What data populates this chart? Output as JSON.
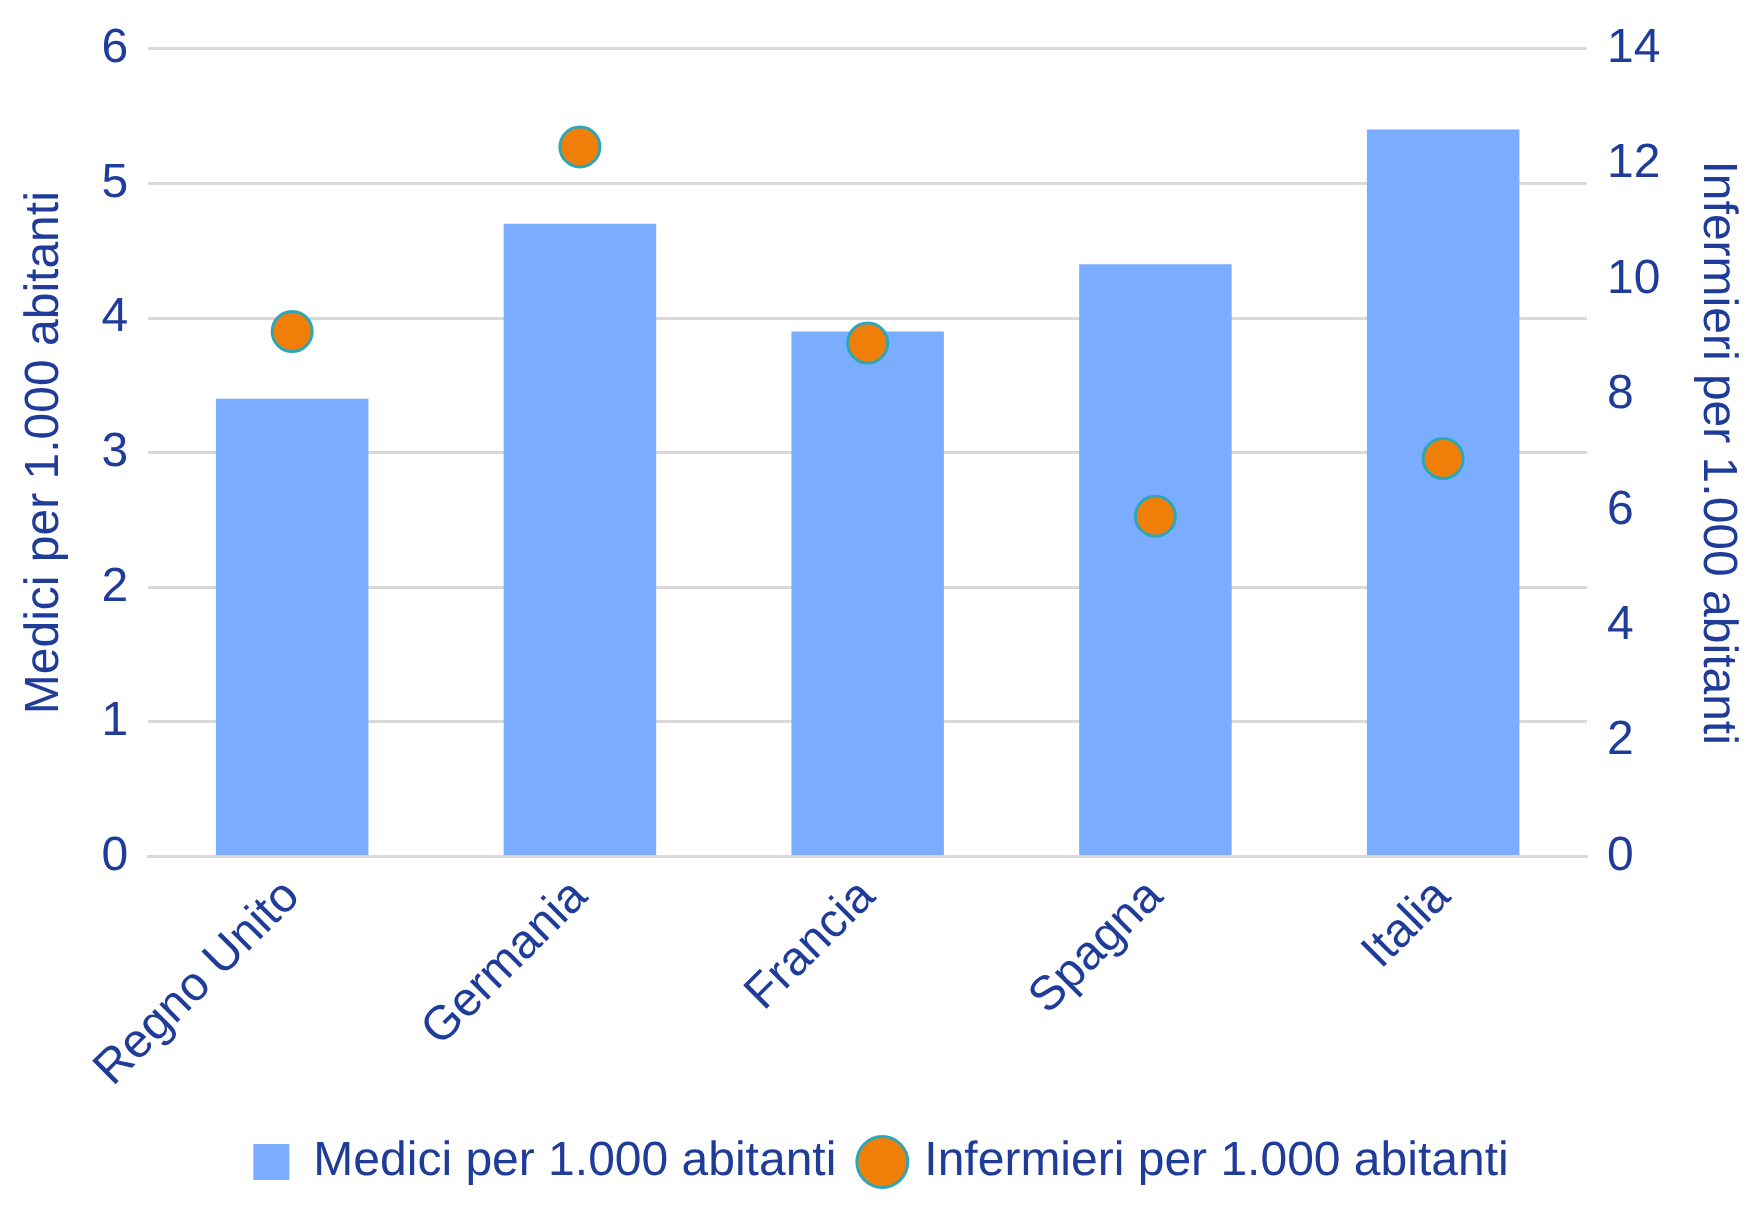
{
  "chart_data": {
    "type": "bar",
    "categories": [
      "Regno Unito",
      "Germania",
      "Francia",
      "Spagna",
      "Italia"
    ],
    "series": [
      {
        "name": "Medici per 1.000 abitanti",
        "color": "#7aacff",
        "values": [
          3.4,
          4.7,
          3.9,
          4.4,
          5.4
        ]
      },
      {
        "name": "Infermieri per 1.000 abitanti",
        "type": "scatter",
        "axis": "y2",
        "color": "#f07f0a",
        "x": [
          "Regno Unito",
          "Germania",
          "Francia",
          "Spagna",
          "Italia"
        ],
        "values": [
          9.1,
          12.3,
          8.9,
          5.9,
          6.9
        ]
      }
    ],
    "ylabel": "Medici per 1.000 abitanti",
    "y2label": "Infermieri per 1.000 abitanti",
    "ylim": [
      0,
      6
    ],
    "yticks": [
      0,
      1,
      2,
      3,
      4,
      5,
      6
    ],
    "y2lim": [
      0,
      14
    ],
    "y2ticks": [
      0,
      2,
      4,
      6,
      8,
      10,
      12,
      14
    ],
    "grid": "y",
    "legend": "bottom",
    "marker": "circle"
  }
}
